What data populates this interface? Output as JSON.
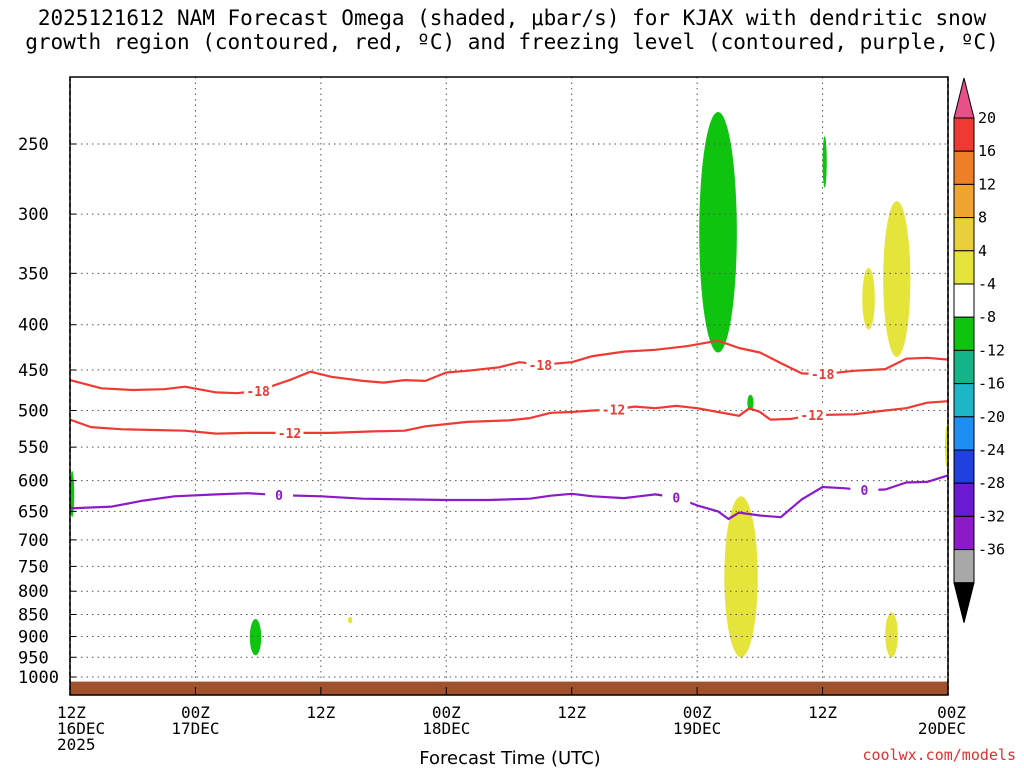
{
  "title_line1": "2025121612 NAM Forecast Omega (shaded, μbar/s) for KJAX with dendritic snow",
  "title_line2": "growth region (contoured, red, ºC) and freezing level (contoured, purple, ºC)",
  "watermark": "coolwx.com/models",
  "chart_data": {
    "type": "time-height contour",
    "xlabel": "Forecast Time (UTC)",
    "x_ticks": [
      {
        "hour": 0,
        "line1": "12Z",
        "line2": "16DEC",
        "line3": "2025"
      },
      {
        "hour": 12,
        "line1": "00Z",
        "line2": "17DEC",
        "line3": ""
      },
      {
        "hour": 24,
        "line1": "12Z",
        "line2": "",
        "line3": ""
      },
      {
        "hour": 36,
        "line1": "00Z",
        "line2": "18DEC",
        "line3": ""
      },
      {
        "hour": 48,
        "line1": "12Z",
        "line2": "",
        "line3": ""
      },
      {
        "hour": 60,
        "line1": "00Z",
        "line2": "19DEC",
        "line3": ""
      },
      {
        "hour": 72,
        "line1": "12Z",
        "line2": "",
        "line3": ""
      },
      {
        "hour": 84,
        "line1": "00Z",
        "line2": "20DEC",
        "line3": ""
      }
    ],
    "y_levels": [
      250,
      300,
      350,
      400,
      450,
      500,
      550,
      600,
      650,
      700,
      750,
      800,
      850,
      900,
      950,
      1000
    ],
    "y_range_hpa": [
      200,
      1025
    ],
    "colorbar": {
      "labels": [
        "20",
        "16",
        "12",
        "8",
        "4",
        "-4",
        "-8",
        "-12",
        "-16",
        "-20",
        "-24",
        "-28",
        "-32",
        "-36"
      ],
      "colors": [
        "#e8508a",
        "#ee3a33",
        "#ef7f26",
        "#f0a530",
        "#e9cf3a",
        "#e4e43a",
        "#ffffff",
        "#0ec40e",
        "#13b488",
        "#1cb6c8",
        "#1e8ef2",
        "#2040e0",
        "#6a1ad0",
        "#8c1ac8",
        "#a8a8a8",
        "#000000"
      ]
    },
    "contours": {
      "dendritic_minus18": {
        "label": "-18",
        "color": "#ee3a33",
        "points": [
          [
            0,
            462
          ],
          [
            3,
            472
          ],
          [
            6,
            474
          ],
          [
            9,
            473
          ],
          [
            11,
            470
          ],
          [
            14,
            477
          ],
          [
            16,
            478
          ],
          [
            18,
            475
          ],
          [
            21,
            462
          ],
          [
            23,
            452
          ],
          [
            25,
            458
          ],
          [
            28,
            463
          ],
          [
            30,
            465
          ],
          [
            32,
            462
          ],
          [
            34,
            463
          ],
          [
            36,
            453
          ],
          [
            38,
            451
          ],
          [
            41,
            447
          ],
          [
            43,
            441
          ],
          [
            45,
            444
          ],
          [
            48,
            441
          ],
          [
            50,
            434
          ],
          [
            53,
            429
          ],
          [
            56,
            427
          ],
          [
            59,
            423
          ],
          [
            62,
            417
          ],
          [
            64,
            425
          ],
          [
            66,
            430
          ],
          [
            68,
            442
          ],
          [
            70,
            454
          ],
          [
            72,
            455
          ],
          [
            75,
            451
          ],
          [
            78,
            449
          ],
          [
            80,
            437
          ],
          [
            82,
            436
          ],
          [
            84,
            438
          ]
        ]
      },
      "dendritic_minus12": {
        "label": "-12",
        "color": "#ee3a33",
        "points": [
          [
            0,
            512
          ],
          [
            2,
            522
          ],
          [
            5,
            525
          ],
          [
            8,
            526
          ],
          [
            11,
            527
          ],
          [
            14,
            531
          ],
          [
            17,
            530
          ],
          [
            21,
            530
          ],
          [
            25,
            530
          ],
          [
            29,
            528
          ],
          [
            32,
            527
          ],
          [
            34,
            521
          ],
          [
            36,
            518
          ],
          [
            38,
            515
          ],
          [
            42,
            513
          ],
          [
            44,
            510
          ],
          [
            46,
            503
          ],
          [
            48,
            502
          ],
          [
            50,
            500
          ],
          [
            52,
            499
          ],
          [
            54,
            495
          ],
          [
            56,
            497
          ],
          [
            58,
            494
          ],
          [
            60,
            497
          ],
          [
            62,
            502
          ],
          [
            64,
            507
          ],
          [
            65,
            497
          ],
          [
            66,
            502
          ],
          [
            67,
            512
          ],
          [
            69,
            511
          ],
          [
            71,
            506
          ],
          [
            75,
            505
          ],
          [
            78,
            500
          ],
          [
            80,
            497
          ],
          [
            82,
            490
          ],
          [
            84,
            488
          ]
        ]
      },
      "freezing_0": {
        "label": "0",
        "color": "#8c1ac8",
        "points": [
          [
            0,
            645
          ],
          [
            4,
            642
          ],
          [
            7,
            632
          ],
          [
            10,
            625
          ],
          [
            14,
            622
          ],
          [
            17,
            620
          ],
          [
            20,
            623
          ],
          [
            24,
            625
          ],
          [
            28,
            629
          ],
          [
            32,
            630
          ],
          [
            36,
            631
          ],
          [
            40,
            631
          ],
          [
            44,
            629
          ],
          [
            46,
            624
          ],
          [
            48,
            621
          ],
          [
            50,
            625
          ],
          [
            53,
            628
          ],
          [
            56,
            622
          ],
          [
            58,
            627
          ],
          [
            60,
            640
          ],
          [
            62,
            650
          ],
          [
            63,
            663
          ],
          [
            64,
            652
          ],
          [
            66,
            657
          ],
          [
            68,
            660
          ],
          [
            70,
            630
          ],
          [
            72,
            610
          ],
          [
            74,
            612
          ],
          [
            76,
            615
          ],
          [
            78,
            614
          ],
          [
            80,
            603
          ],
          [
            82,
            602
          ],
          [
            84,
            592
          ]
        ]
      }
    },
    "omega_shaded_regions": [
      {
        "approx_hour_range": [
          0,
          0.4
        ],
        "approx_level_hpa": [
          585,
          660
        ],
        "value": "-4 to -8"
      },
      {
        "approx_hour_range": [
          17.2,
          18.3
        ],
        "approx_level_hpa": [
          860,
          945
        ],
        "value": "-4 to -8"
      },
      {
        "approx_hour_range": [
          26.6,
          27
        ],
        "approx_level_hpa": [
          855,
          870
        ],
        "value": "4 to 8"
      },
      {
        "approx_hour_range": [
          60.2,
          63.8
        ],
        "approx_level_hpa": [
          230,
          430
        ],
        "value": "-4 to -8"
      },
      {
        "approx_hour_range": [
          64.8,
          65.4
        ],
        "approx_level_hpa": [
          480,
          500
        ],
        "value": "-4 to -8"
      },
      {
        "approx_hour_range": [
          72,
          72.4
        ],
        "approx_level_hpa": [
          245,
          280
        ],
        "value": "-4 to -8"
      },
      {
        "approx_hour_range": [
          62.6,
          65.8
        ],
        "approx_level_hpa": [
          625,
          950
        ],
        "value": "4 to 8"
      },
      {
        "approx_hour_range": [
          75.8,
          77
        ],
        "approx_level_hpa": [
          345,
          405
        ],
        "value": "4 to 8"
      },
      {
        "approx_hour_range": [
          77.8,
          80.4
        ],
        "approx_level_hpa": [
          290,
          435
        ],
        "value": "4 to 8"
      },
      {
        "approx_hour_range": [
          78,
          79.2
        ],
        "approx_level_hpa": [
          845,
          950
        ],
        "value": "4 to 8"
      },
      {
        "approx_hour_range": [
          83.8,
          84
        ],
        "approx_level_hpa": [
          520,
          580
        ],
        "value": "4 to 8"
      }
    ],
    "terrain_surface_hpa": 1012
  }
}
